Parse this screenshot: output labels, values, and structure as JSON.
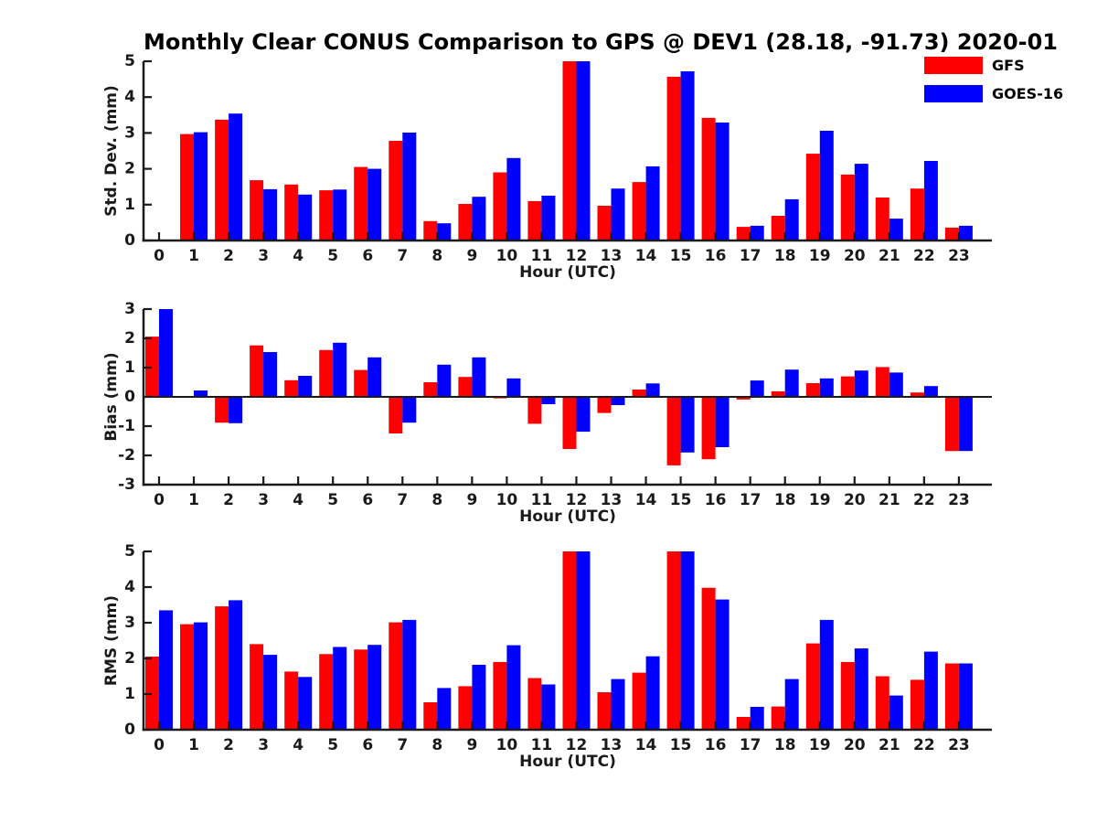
{
  "title": "Monthly Clear CONUS Comparison to GPS @ DEV1 (28.18, -91.73) 2020-01",
  "legend": {
    "position": "top-right-outside",
    "items": [
      {
        "label": "GFS",
        "color": "#ff0000"
      },
      {
        "label": "GOES-16",
        "color": "#0000ff"
      }
    ]
  },
  "colors": {
    "gfs": "#ff0000",
    "goes16": "#0000ff",
    "axis": "#1a1a1a",
    "background": "#ffffff"
  },
  "chart_data": [
    {
      "type": "bar",
      "panel": "std-dev",
      "ylabel": "Std. Dev. (mm)",
      "xlabel": "Hour (UTC)",
      "categories": [
        "0",
        "1",
        "2",
        "3",
        "4",
        "5",
        "6",
        "7",
        "8",
        "9",
        "10",
        "11",
        "12",
        "13",
        "14",
        "15",
        "16",
        "17",
        "18",
        "19",
        "20",
        "21",
        "22",
        "23"
      ],
      "ylim": [
        0,
        5
      ],
      "yticks": [
        0,
        1,
        2,
        3,
        4,
        5
      ],
      "grid": false,
      "series": [
        {
          "name": "GFS",
          "color": "#ff0000",
          "values": [
            0,
            2.97,
            3.37,
            1.68,
            1.56,
            1.4,
            2.05,
            2.78,
            0.54,
            1.02,
            1.9,
            1.1,
            5,
            0.97,
            1.63,
            4.57,
            3.42,
            0.38,
            0.69,
            2.42,
            1.84,
            1.2,
            1.45,
            0.36
          ]
        },
        {
          "name": "GOES-16",
          "color": "#0000ff",
          "values": [
            0,
            3.02,
            3.54,
            1.43,
            1.28,
            1.42,
            2.0,
            3.01,
            0.48,
            1.22,
            2.3,
            1.25,
            5,
            1.45,
            2.07,
            4.72,
            3.29,
            0.41,
            1.15,
            3.06,
            2.14,
            0.61,
            2.22,
            0.41
          ]
        }
      ]
    },
    {
      "type": "bar",
      "panel": "bias",
      "ylabel": "Bias (mm)",
      "xlabel": "Hour (UTC)",
      "categories": [
        "0",
        "1",
        "2",
        "3",
        "4",
        "5",
        "6",
        "7",
        "8",
        "9",
        "10",
        "11",
        "12",
        "13",
        "14",
        "15",
        "16",
        "17",
        "18",
        "19",
        "20",
        "21",
        "22",
        "23"
      ],
      "ylim": [
        -3,
        3
      ],
      "yticks": [
        -3,
        -2,
        -1,
        0,
        1,
        2,
        3
      ],
      "grid": false,
      "series": [
        {
          "name": "GFS",
          "color": "#ff0000",
          "values": [
            2.06,
            0,
            -0.88,
            1.76,
            0.57,
            1.6,
            0.92,
            -1.25,
            0.5,
            0.68,
            -0.05,
            -0.92,
            -1.78,
            -0.55,
            0.25,
            -2.34,
            -2.13,
            -0.09,
            0.19,
            0.47,
            0.7,
            1.02,
            0.15,
            -1.85
          ]
        },
        {
          "name": "GOES-16",
          "color": "#0000ff",
          "values": [
            3.0,
            0.22,
            -0.9,
            1.53,
            0.72,
            1.85,
            1.35,
            -0.88,
            1.1,
            1.35,
            0.63,
            -0.25,
            -1.19,
            -0.28,
            0.46,
            -1.9,
            -1.72,
            0.56,
            0.93,
            0.63,
            0.9,
            0.83,
            0.37,
            -1.85
          ]
        }
      ]
    },
    {
      "type": "bar",
      "panel": "rms",
      "ylabel": "RMS (mm)",
      "xlabel": "Hour (UTC)",
      "categories": [
        "0",
        "1",
        "2",
        "3",
        "4",
        "5",
        "6",
        "7",
        "8",
        "9",
        "10",
        "11",
        "12",
        "13",
        "14",
        "15",
        "16",
        "17",
        "18",
        "19",
        "20",
        "21",
        "22",
        "23"
      ],
      "ylim": [
        0,
        5
      ],
      "yticks": [
        0,
        1,
        2,
        3,
        4,
        5
      ],
      "grid": false,
      "series": [
        {
          "name": "GFS",
          "color": "#ff0000",
          "values": [
            2.05,
            2.96,
            3.46,
            2.4,
            1.63,
            2.12,
            2.25,
            3.01,
            0.77,
            1.22,
            1.9,
            1.45,
            5,
            1.05,
            1.6,
            5,
            3.98,
            0.36,
            0.65,
            2.42,
            1.9,
            1.5,
            1.4,
            1.86
          ]
        },
        {
          "name": "GOES-16",
          "color": "#0000ff",
          "values": [
            3.35,
            3.01,
            3.63,
            2.1,
            1.48,
            2.32,
            2.38,
            3.08,
            1.17,
            1.82,
            2.37,
            1.27,
            5,
            1.42,
            2.06,
            5,
            3.65,
            0.64,
            1.42,
            3.08,
            2.28,
            0.96,
            2.19,
            1.86
          ]
        }
      ]
    }
  ]
}
